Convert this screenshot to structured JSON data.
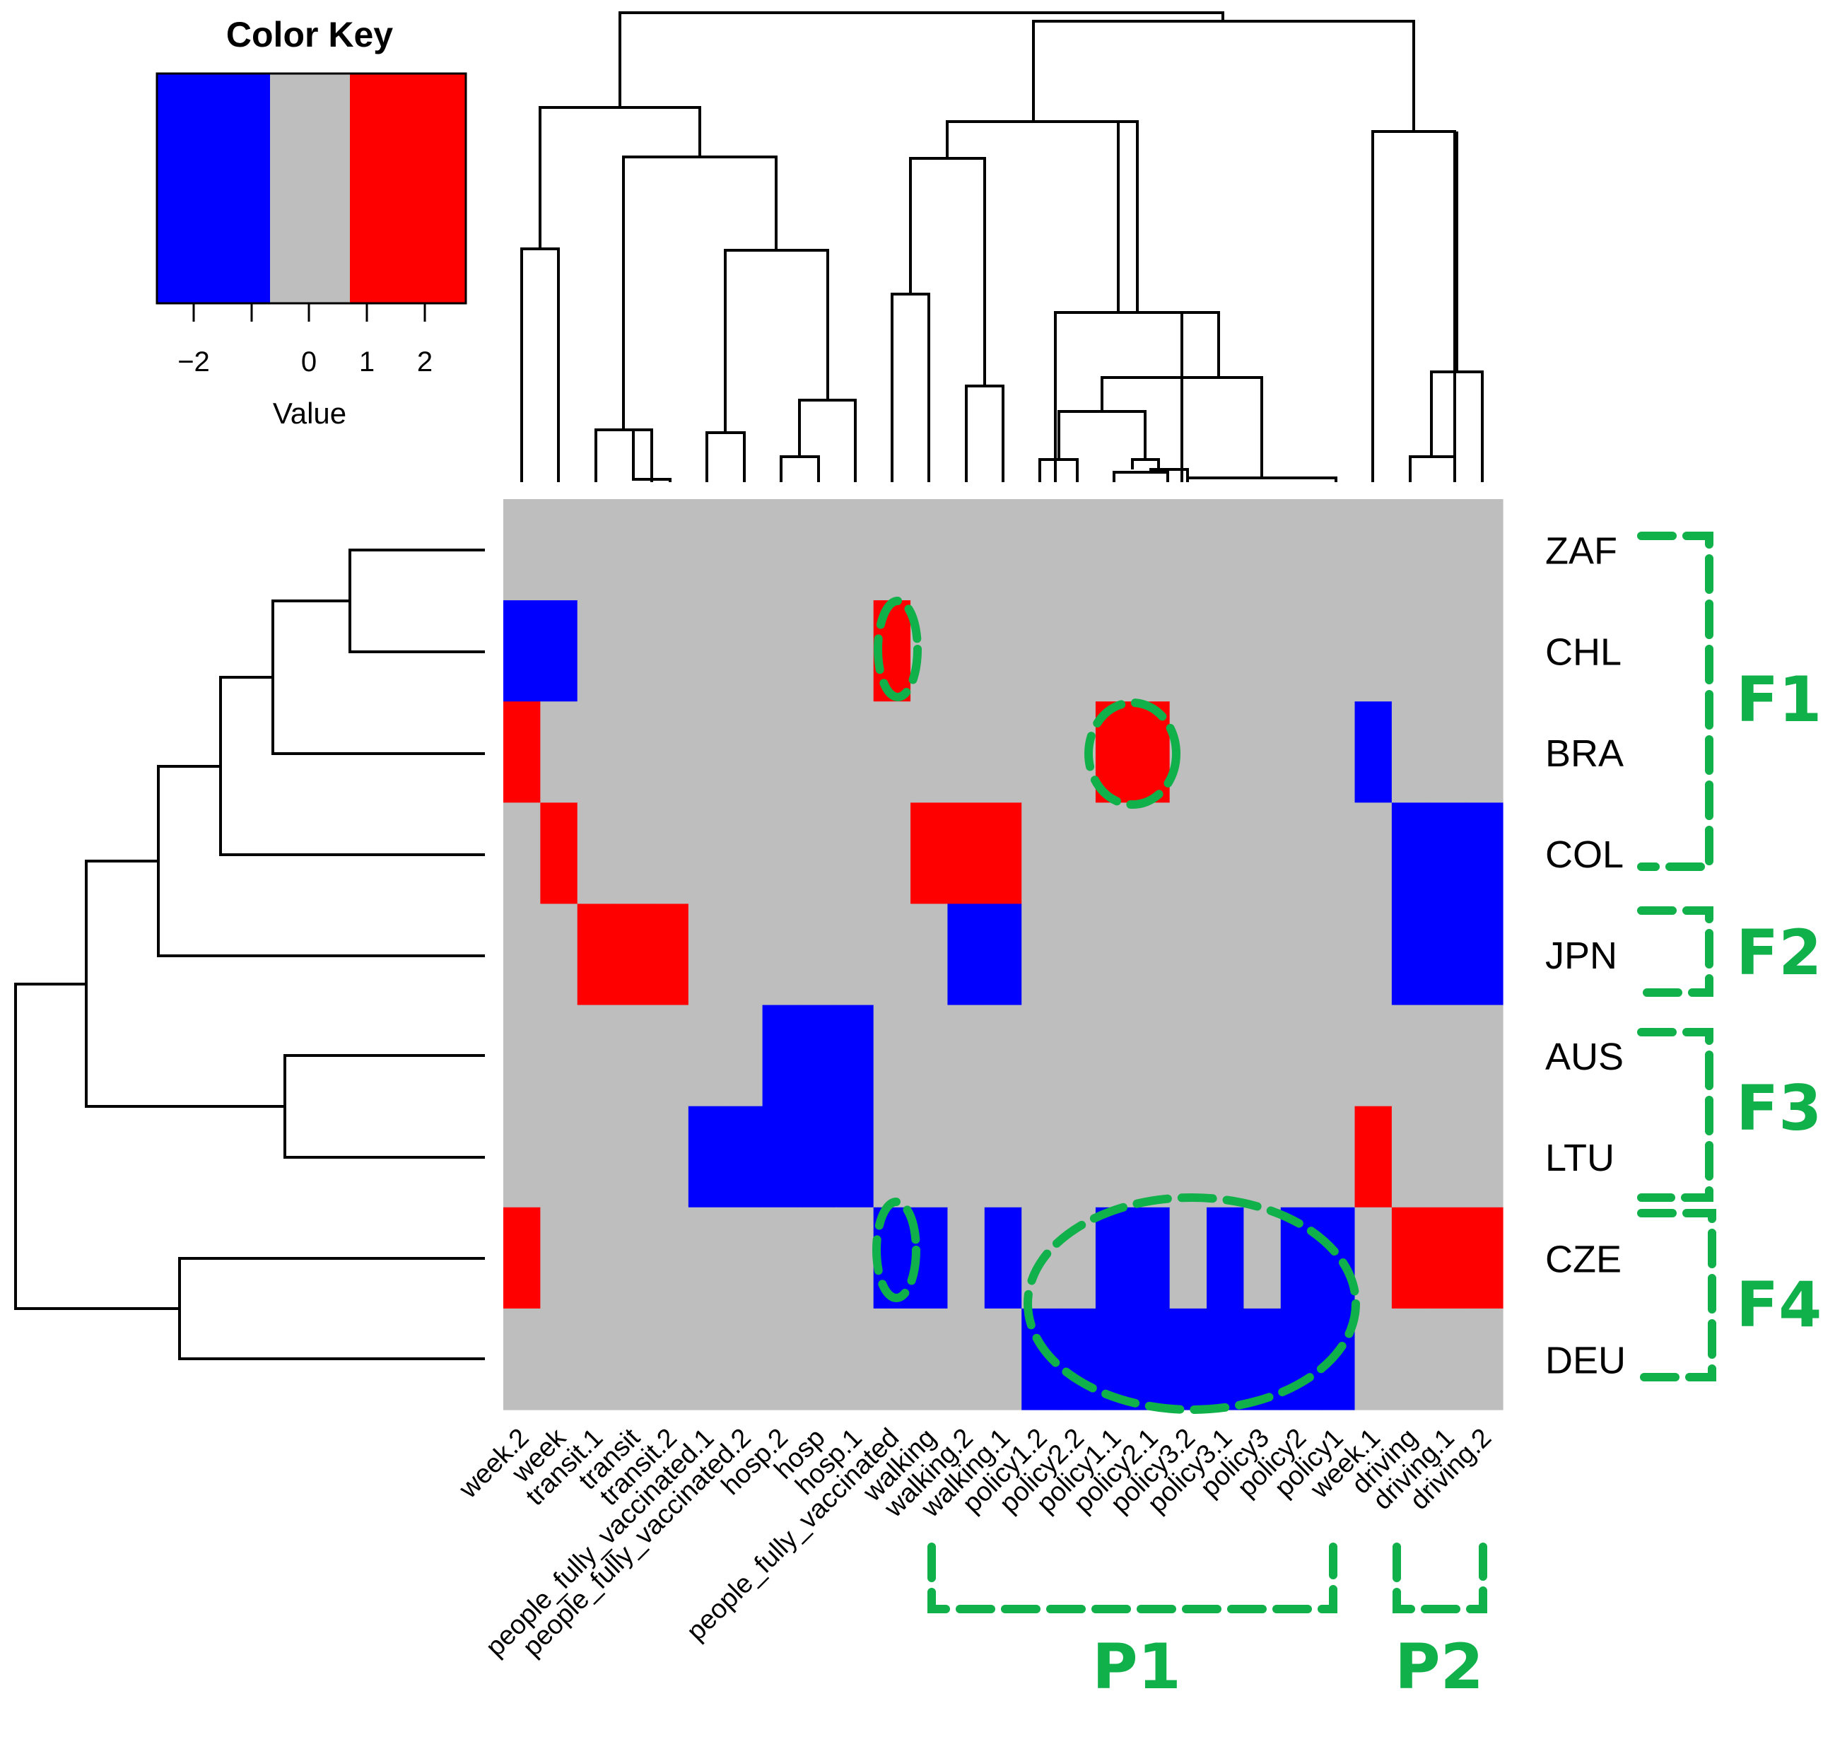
{
  "chart_data": {
    "type": "heatmap",
    "color_key": {
      "title": "Color Key",
      "xlabel": "Value",
      "ticks": [
        "−2",
        "0",
        "1",
        "2"
      ],
      "colors": {
        "low": "#0000ff",
        "mid": "#bebebe",
        "high": "#ff0000"
      }
    },
    "columns": [
      "week.2",
      "week",
      "transit.1",
      "transit",
      "transit.2",
      "people_fully_vaccinated.1",
      "people_fully_vaccinated.2",
      "hosp.2",
      "hosp",
      "hosp.1",
      "people_fully_vaccinated",
      "walking",
      "walking.2",
      "walking.1",
      "policy1.2",
      "policy2.2",
      "policy1.1",
      "policy2.1",
      "policy3.2",
      "policy3.1",
      "policy3",
      "policy2",
      "policy1",
      "week.1",
      "driving",
      "driving.1",
      "driving.2"
    ],
    "rows": [
      "ZAF",
      "CHL",
      "BRA",
      "COL",
      "JPN",
      "AUS",
      "LTU",
      "CZE",
      "DEU"
    ],
    "values": [
      [
        0,
        0,
        0,
        0,
        0,
        0,
        0,
        0,
        0,
        0,
        0,
        0,
        0,
        0,
        0,
        0,
        0,
        0,
        0,
        0,
        0,
        0,
        0,
        0,
        0,
        0,
        0
      ],
      [
        -1,
        -1,
        0,
        0,
        0,
        0,
        0,
        0,
        0,
        0,
        1,
        0,
        0,
        0,
        0,
        0,
        0,
        0,
        0,
        0,
        0,
        0,
        0,
        0,
        0,
        0,
        0
      ],
      [
        1,
        0,
        0,
        0,
        0,
        0,
        0,
        0,
        0,
        0,
        0,
        0,
        0,
        0,
        0,
        0,
        1,
        1,
        0,
        0,
        0,
        0,
        0,
        -1,
        0,
        0,
        0
      ],
      [
        0,
        1,
        0,
        0,
        0,
        0,
        0,
        0,
        0,
        0,
        0,
        1,
        1,
        1,
        0,
        0,
        0,
        0,
        0,
        0,
        0,
        0,
        0,
        0,
        -1,
        -1,
        -1
      ],
      [
        0,
        0,
        1,
        1,
        1,
        0,
        0,
        0,
        0,
        0,
        0,
        0,
        -1,
        -1,
        0,
        0,
        0,
        0,
        0,
        0,
        0,
        0,
        0,
        0,
        -1,
        -1,
        -1
      ],
      [
        0,
        0,
        0,
        0,
        0,
        0,
        0,
        -1,
        -1,
        -1,
        0,
        0,
        0,
        0,
        0,
        0,
        0,
        0,
        0,
        0,
        0,
        0,
        0,
        0,
        0,
        0,
        0
      ],
      [
        0,
        0,
        0,
        0,
        0,
        -1,
        -1,
        -1,
        -1,
        -1,
        0,
        0,
        0,
        0,
        0,
        0,
        0,
        0,
        0,
        0,
        0,
        0,
        0,
        1,
        0,
        0,
        0
      ],
      [
        1,
        0,
        0,
        0,
        0,
        0,
        0,
        0,
        0,
        0,
        -1,
        -1,
        0,
        -1,
        0,
        0,
        -1,
        -1,
        0,
        -1,
        0,
        -1,
        -1,
        0,
        1,
        1,
        1
      ],
      [
        0,
        0,
        0,
        0,
        0,
        0,
        0,
        0,
        0,
        0,
        0,
        0,
        0,
        0,
        -1,
        -1,
        -1,
        -1,
        -1,
        -1,
        -1,
        -1,
        -1,
        0,
        0,
        0,
        0
      ]
    ],
    "row_groups": [
      "F1",
      "F2",
      "F3",
      "F4"
    ],
    "col_groups": [
      "P1",
      "P2"
    ]
  }
}
